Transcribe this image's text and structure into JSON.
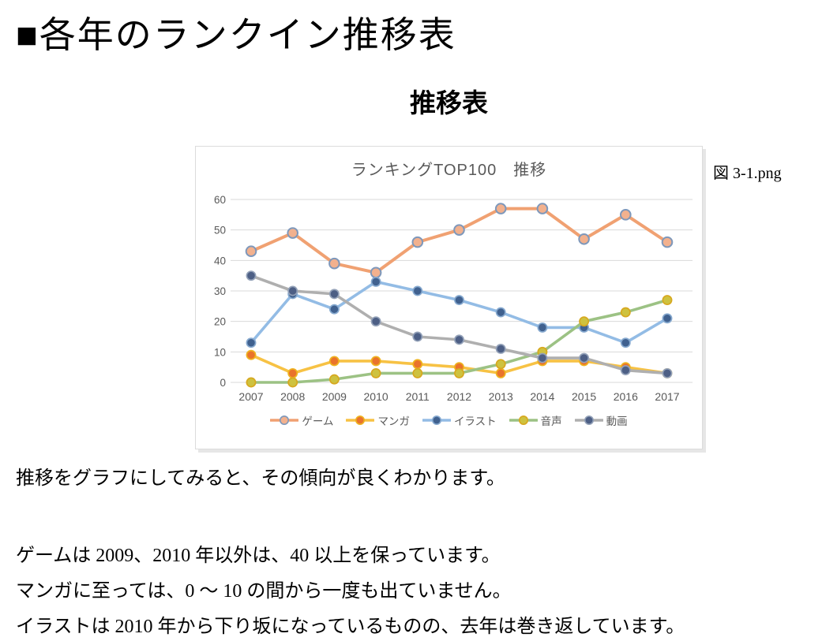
{
  "page": {
    "title": "■各年のランクイン推移表",
    "subtitle": "推移表",
    "figure_caption": "図 3-1.png",
    "paragraphs": {
      "p1": "推移をグラフにしてみると、その傾向が良くわかります。",
      "p2": "ゲームは 2009、2010 年以外は、40 以上を保っています。",
      "p3": "マンガに至っては、0 ～ 10 の間から一度も出ていません。",
      "p4": "イラストは 2010 年から下り坂になっているものの、去年は巻き返しています。"
    }
  },
  "chart_data": {
    "type": "line",
    "title": "ランキングTOP100　推移",
    "categories": [
      2007,
      2008,
      2009,
      2010,
      2011,
      2012,
      2013,
      2014,
      2015,
      2016,
      2017
    ],
    "series": [
      {
        "name": "ゲーム",
        "values": [
          43,
          49,
          39,
          36,
          46,
          50,
          57,
          57,
          47,
          55,
          46
        ],
        "line_color": "#F0A172",
        "marker_fill": "#F2B18E",
        "marker_edge": "#7E98BB"
      },
      {
        "name": "マンガ",
        "values": [
          9,
          3,
          7,
          7,
          6,
          5,
          3,
          7,
          7,
          5,
          3
        ],
        "line_color": "#F7C244",
        "marker_fill": "#E9732C",
        "marker_edge": "#EFB31F"
      },
      {
        "name": "イラスト",
        "values": [
          13,
          29,
          24,
          33,
          30,
          27,
          23,
          18,
          18,
          13,
          21
        ],
        "line_color": "#93BCE5",
        "marker_fill": "#40618F",
        "marker_edge": "#86A9CF"
      },
      {
        "name": "音声",
        "values": [
          0,
          0,
          1,
          3,
          3,
          3,
          6,
          10,
          20,
          23,
          27
        ],
        "line_color": "#9CC284",
        "marker_fill": "#CEC23F",
        "marker_edge": "#D7A81F"
      },
      {
        "name": "動画",
        "values": [
          35,
          30,
          29,
          20,
          15,
          14,
          11,
          8,
          8,
          4,
          3
        ],
        "line_color": "#AFAFAF",
        "marker_fill": "#4D5F85",
        "marker_edge": "#93A1B8"
      }
    ],
    "ylim": [
      0,
      60
    ],
    "ytick_step": 10,
    "yticks": [
      0,
      10,
      20,
      30,
      40,
      50,
      60
    ],
    "grid": true,
    "gridline_color": "#D9D9D9",
    "tick_label_color": "#595959",
    "legend_position": "bottom",
    "xlabel": "",
    "ylabel": ""
  }
}
